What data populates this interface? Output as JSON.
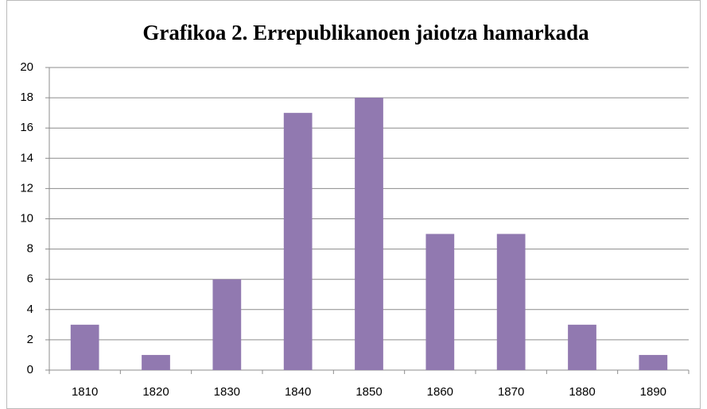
{
  "chart_data": {
    "type": "bar",
    "title": "Grafikoa 2. Errepublikanoen jaiotza hamarkada",
    "categories": [
      "1810",
      "1820",
      "1830",
      "1840",
      "1850",
      "1860",
      "1870",
      "1880",
      "1890"
    ],
    "values": [
      3,
      1,
      6,
      17,
      18,
      9,
      9,
      3,
      1
    ],
    "color": "#9179b0",
    "ylim": [
      0,
      20
    ],
    "yticks": [
      0,
      2,
      4,
      6,
      8,
      10,
      12,
      14,
      16,
      18,
      20
    ],
    "grid": true
  }
}
